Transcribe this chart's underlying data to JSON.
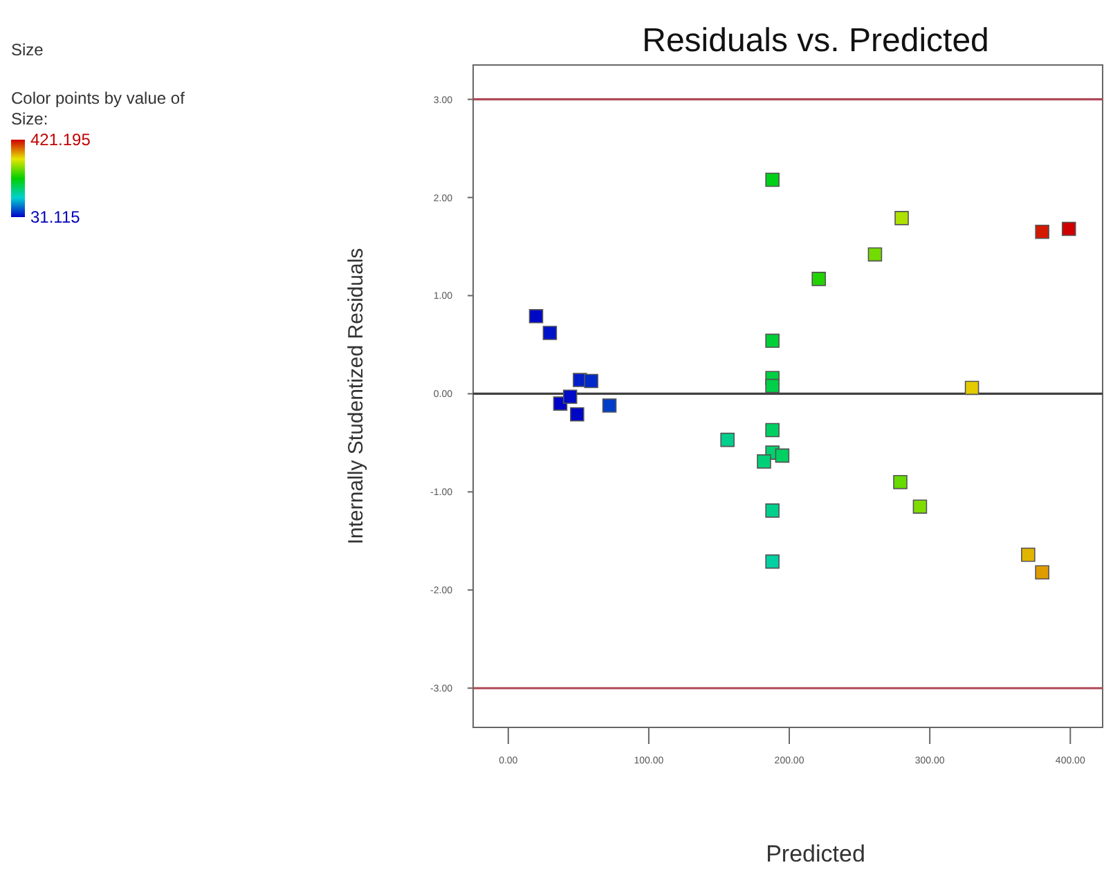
{
  "chart_data": {
    "type": "scatter",
    "title": "Residuals vs. Predicted",
    "subtitle": "Size",
    "xlabel": "Predicted",
    "ylabel": "Internally Studentized Residuals",
    "clabel": "Color points by value of Size:",
    "x": [
      19.8,
      29.6,
      51,
      59,
      37,
      44,
      49,
      72,
      188,
      188,
      188,
      188,
      188,
      156,
      188,
      182,
      195,
      188,
      188,
      221,
      261,
      280,
      380,
      399,
      330,
      279,
      293,
      370,
      380
    ],
    "values": [
      0.79,
      0.62,
      0.14,
      0.13,
      -0.1,
      -0.03,
      -0.21,
      -0.12,
      2.18,
      0.54,
      0.16,
      0.08,
      -0.37,
      -0.47,
      -0.6,
      -0.69,
      -0.63,
      -1.19,
      -1.71,
      1.17,
      1.42,
      1.79,
      1.65,
      1.68,
      0.06,
      -0.9,
      -1.15,
      -1.64,
      -1.82
    ],
    "cvalues": [
      35,
      40,
      45,
      50,
      33,
      36,
      34,
      60,
      215,
      200,
      195,
      193,
      180,
      160,
      175,
      170,
      180,
      160,
      150,
      240,
      275,
      300,
      410,
      421,
      335,
      270,
      280,
      345,
      355
    ],
    "clim": [
      31.115,
      421.195
    ],
    "cticks": [
      31.115,
      421.195
    ],
    "xlim": [
      -25,
      423
    ],
    "xticks": [
      {
        "value": 0,
        "label": "0.00"
      },
      {
        "value": 100,
        "label": "100.00"
      },
      {
        "value": 200,
        "label": "200.00"
      },
      {
        "value": 300,
        "label": "300.00"
      },
      {
        "value": 400,
        "label": "400.00"
      }
    ],
    "ylim": [
      -3.4,
      3.35
    ],
    "yticks": [
      {
        "value": -3,
        "label": "-3.00"
      },
      {
        "value": -2,
        "label": "-2.00"
      },
      {
        "value": -1,
        "label": "-1.00"
      },
      {
        "value": 0,
        "label": "0.00"
      },
      {
        "value": 1,
        "label": "1.00"
      },
      {
        "value": 2,
        "label": "2.00"
      },
      {
        "value": 3,
        "label": "3.00"
      }
    ],
    "ref_lines": [
      {
        "axis": "y",
        "value": 3,
        "color": "#b04858"
      },
      {
        "axis": "y",
        "value": 0,
        "color": "#404040"
      },
      {
        "axis": "y",
        "value": -3,
        "color": "#b04858"
      }
    ],
    "marker": "square",
    "grid": false
  }
}
